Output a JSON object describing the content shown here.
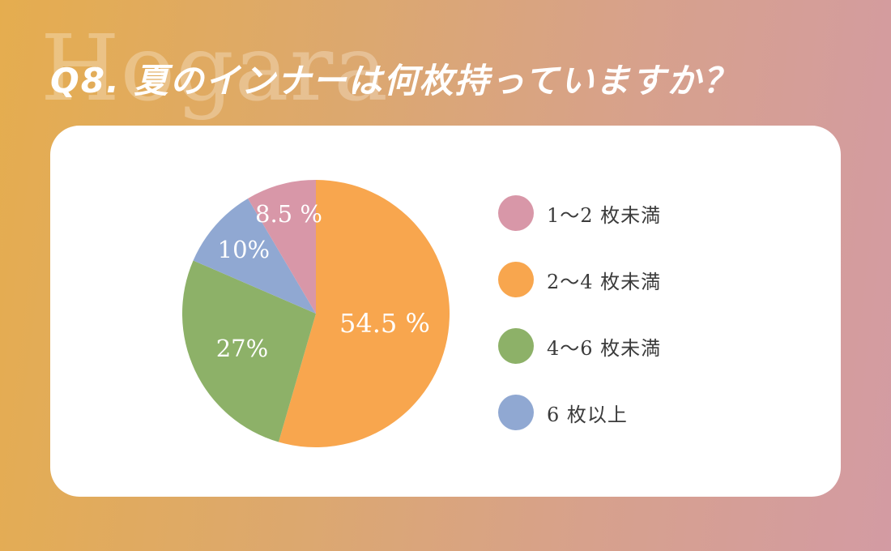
{
  "page": {
    "background_gradient": [
      "#E5AD4F",
      "#D9A87E",
      "#D39BA3"
    ],
    "card_color": "#FFFFFF"
  },
  "brand": {
    "watermark": "Hogara"
  },
  "header": {
    "title": "Q8. 夏のインナーは何枚持っていますか？"
  },
  "chart_data": {
    "type": "pie",
    "title": "Q8. 夏のインナーは何枚持っていますか？",
    "unit": "%",
    "start_angle_deg": 0,
    "direction": "clockwise",
    "legend_position": "right",
    "slices": [
      {
        "label": "2〜4 枚未満",
        "value": 54.5,
        "display": "54.5 %",
        "color": "#F8A64E",
        "label_r": 0.52
      },
      {
        "label": "4〜6 枚未満",
        "value": 27,
        "display": "27%",
        "color": "#8DB168",
        "label_r": 0.61
      },
      {
        "label": "6 枚以上",
        "value": 10,
        "display": "10%",
        "color": "#90A8D2",
        "label_r": 0.72
      },
      {
        "label": "1〜2 枚未満",
        "value": 8.5,
        "display": "8.5 %",
        "color": "#D897A8",
        "label_r": 0.77
      }
    ],
    "legend": [
      {
        "label": "1〜2 枚未満",
        "color": "#D897A8"
      },
      {
        "label": "2〜4 枚未満",
        "color": "#F8A64E"
      },
      {
        "label": "4〜6 枚未満",
        "color": "#8DB168"
      },
      {
        "label": "6 枚以上",
        "color": "#90A8D2"
      }
    ],
    "label_text_color": "#FFFFFF",
    "legend_text_color": "#3B3B3B"
  }
}
